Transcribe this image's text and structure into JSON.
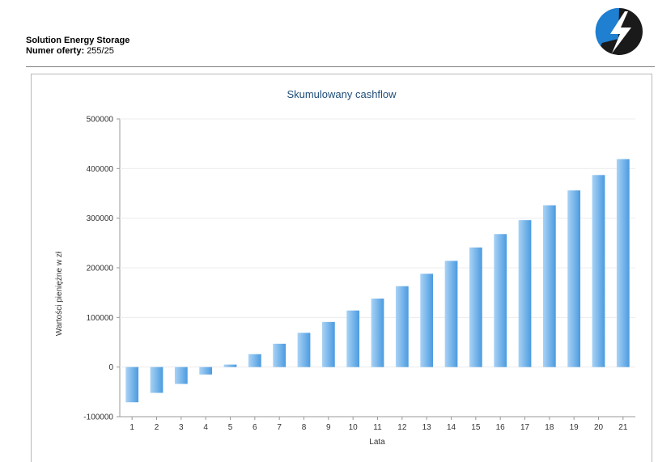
{
  "header": {
    "company": "Solution Energy Storage",
    "offer_label": "Numer oferty:",
    "offer_number": "255/25"
  },
  "logo": {
    "icon": "lightning-bolt-icon",
    "color_primary": "#1f7fd0",
    "color_secondary": "#1a1a1a"
  },
  "colors": {
    "bar_light": "#a9d2f5",
    "bar_dark": "#4a9be0",
    "title": "#1f4e79"
  },
  "chart_data": {
    "type": "bar",
    "title": "Skumulowany cashflow",
    "xlabel": "Lata",
    "ylabel": "Wartości pieniężne w zł",
    "categories": [
      "1",
      "2",
      "3",
      "4",
      "5",
      "6",
      "7",
      "8",
      "9",
      "10",
      "11",
      "12",
      "13",
      "14",
      "15",
      "16",
      "17",
      "18",
      "19",
      "20",
      "21"
    ],
    "values": [
      -71000,
      -52000,
      -34000,
      -15000,
      5000,
      26000,
      47000,
      69000,
      91000,
      114000,
      138000,
      163000,
      188000,
      214000,
      241000,
      268000,
      296000,
      326000,
      356000,
      387000,
      419000
    ],
    "ylim": [
      -100000,
      500000
    ],
    "yticks": [
      "-100000",
      "0",
      "100000",
      "200000",
      "300000",
      "400000",
      "500000"
    ],
    "ytick_values": [
      -100000,
      0,
      100000,
      200000,
      300000,
      400000,
      500000
    ],
    "grid": true,
    "legend": "none"
  }
}
